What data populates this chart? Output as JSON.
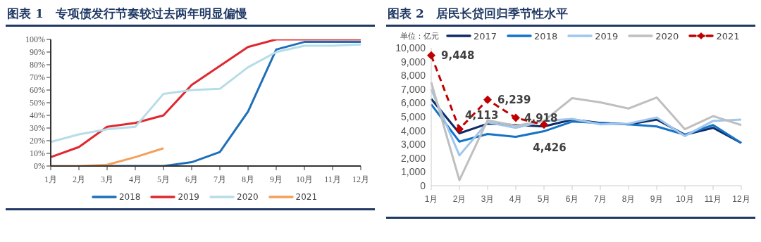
{
  "chart_data": [
    {
      "type": "line",
      "title": "图表 1　专项债发行节奏较过去两年明显偏慢",
      "categories": [
        "1月",
        "2月",
        "3月",
        "4月",
        "5月",
        "6月",
        "7月",
        "8月",
        "9月",
        "10月",
        "11月",
        "12月"
      ],
      "ylim": [
        0,
        100
      ],
      "yticks": [
        {
          "value": 0,
          "label": "0%"
        },
        {
          "value": 10,
          "label": "10%"
        },
        {
          "value": 20,
          "label": "20%"
        },
        {
          "value": 30,
          "label": "30%"
        },
        {
          "value": 40,
          "label": "40%"
        },
        {
          "value": 50,
          "label": "50%"
        },
        {
          "value": 60,
          "label": "60%"
        },
        {
          "value": 70,
          "label": "70%"
        },
        {
          "value": 80,
          "label": "80%"
        },
        {
          "value": 90,
          "label": "90%"
        },
        {
          "value": 100,
          "label": "100%"
        }
      ],
      "legend": "bottom",
      "marker": "none",
      "series": [
        {
          "name": "2018",
          "color": "#1f6fb8",
          "values": [
            null,
            null,
            0,
            0,
            0,
            3,
            11,
            43,
            92,
            98,
            98,
            98
          ]
        },
        {
          "name": "2019",
          "color": "#e0282e",
          "values": [
            7,
            15,
            31,
            34,
            40,
            64,
            79,
            94,
            100,
            100,
            100,
            100
          ]
        },
        {
          "name": "2020",
          "color": "#b6dde8",
          "values": [
            19,
            25,
            29,
            31,
            57,
            60,
            61,
            78,
            90,
            95,
            95,
            96
          ]
        },
        {
          "name": "2021",
          "color": "#f4a05a",
          "values": [
            0,
            0,
            1,
            7,
            14,
            null,
            null,
            null,
            null,
            null,
            null,
            null
          ]
        }
      ]
    },
    {
      "type": "line",
      "title": "图表 2　居民长贷回归季节性水平",
      "ylabel": "单位：亿元",
      "categories": [
        "1月",
        "2月",
        "3月",
        "4月",
        "5月",
        "6月",
        "7月",
        "8月",
        "9月",
        "10月",
        "11月",
        "12月"
      ],
      "ylim": [
        0,
        10000
      ],
      "yticks": [
        0,
        {
          "value": 1000,
          "label": "1,000"
        },
        {
          "value": 2000,
          "label": "2,000"
        },
        {
          "value": 3000,
          "label": "3,000"
        },
        {
          "value": 4000,
          "label": "4,000"
        },
        {
          "value": 5000,
          "label": "5,000"
        },
        {
          "value": 6000,
          "label": "6,000"
        },
        {
          "value": 7000,
          "label": "7,000"
        },
        {
          "value": 8000,
          "label": "8,000"
        },
        {
          "value": 9000,
          "label": "9,000"
        },
        {
          "value": 10000,
          "label": "10,000"
        }
      ],
      "legend": "top",
      "marker": "none",
      "series": [
        {
          "name": "2017",
          "color": "#0f2a66",
          "values": [
            6300,
            3800,
            4500,
            4400,
            4300,
            4800,
            4550,
            4450,
            4800,
            3700,
            4200,
            3100
          ]
        },
        {
          "name": "2018",
          "color": "#1573c7",
          "values": [
            5900,
            3200,
            3750,
            3550,
            3950,
            4650,
            4550,
            4450,
            4300,
            3700,
            4400,
            3100
          ]
        },
        {
          "name": "2019",
          "color": "#9fc6ec",
          "values": [
            7000,
            2200,
            4600,
            4200,
            4700,
            4850,
            4450,
            4500,
            4950,
            3600,
            4700,
            4800
          ]
        },
        {
          "name": "2020",
          "color": "#bfbfbf",
          "values": [
            7500,
            400,
            4750,
            4350,
            4700,
            6350,
            6050,
            5600,
            6400,
            4100,
            5050,
            4400
          ]
        },
        {
          "name": "2021",
          "color": "#c00000",
          "marker": "diamond",
          "line_style": "dashed",
          "values": [
            9448,
            4113,
            6239,
            4918,
            4426,
            null,
            null,
            null,
            null,
            null,
            null,
            null
          ],
          "value_labels": [
            "9,448",
            "4,113",
            "6,239",
            "4,918",
            "4,426",
            null,
            null,
            null,
            null,
            null,
            null,
            null
          ]
        }
      ]
    }
  ]
}
